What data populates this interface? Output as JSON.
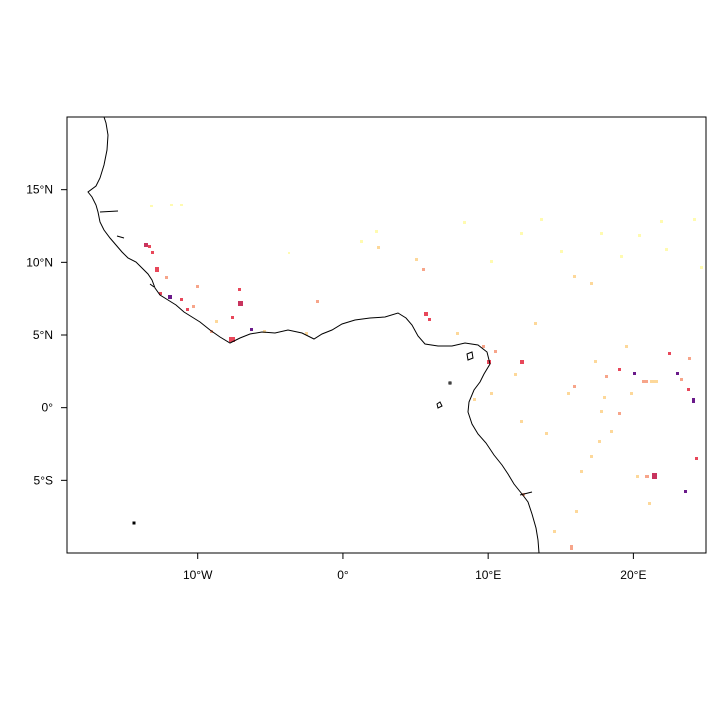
{
  "map": {
    "x_ticks": [
      {
        "value": -10,
        "label": "10°W"
      },
      {
        "value": 0,
        "label": "0°"
      },
      {
        "value": 10,
        "label": "10°E"
      },
      {
        "value": 20,
        "label": "20°E"
      }
    ],
    "y_ticks": [
      {
        "value": 15,
        "label": "15°N"
      },
      {
        "value": 10,
        "label": "10°N"
      },
      {
        "value": 5,
        "label": "5°N"
      },
      {
        "value": 0,
        "label": "0°"
      },
      {
        "value": -5,
        "label": "5°S"
      }
    ],
    "lon_range": [
      -19,
      25
    ],
    "lat_range": [
      -10,
      20
    ],
    "colors": {
      "pale_yellow": "#fffbb0",
      "light_orange": "#fdd89a",
      "salmon": "#f7a58a",
      "red": "#e8475a",
      "crimson": "#c8345e",
      "purple": "#6a1a8a"
    }
  }
}
